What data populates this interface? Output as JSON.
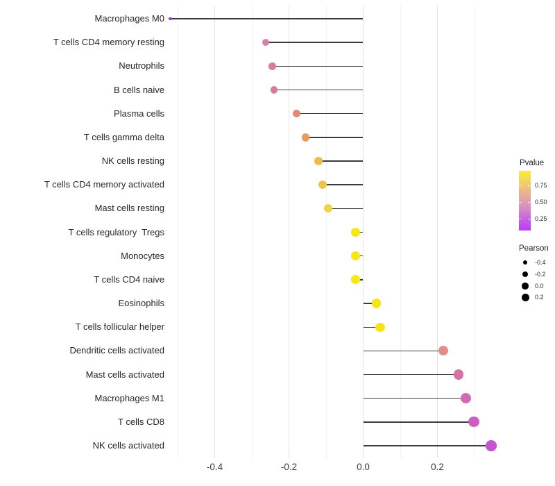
{
  "chart_data": {
    "type": "lollipop",
    "title": "",
    "xlabel": "",
    "ylabel": "",
    "xlim": [
      -0.565,
      0.388
    ],
    "grid": "vertical-only",
    "encoding": {
      "x": "Pearson correlation",
      "y": "immune cell type",
      "dot_size": "Pearson",
      "dot_color": "Pvalue"
    },
    "x_ticks": [
      {
        "label": "-0.4",
        "value": -0.4
      },
      {
        "label": "-0.2",
        "value": -0.2
      },
      {
        "label": "0.0",
        "value": 0.0
      },
      {
        "label": "0.2",
        "value": 0.2
      }
    ],
    "x_minor_values": [
      -0.5,
      -0.3,
      -0.1,
      0.1,
      0.3
    ],
    "points": [
      {
        "label": "Macrophages M0",
        "pearson": -0.52,
        "pvalue": 0.15,
        "color": "#9c33e4",
        "size": 4.5
      },
      {
        "label": "T cells CD4 memory resting",
        "pearson": -0.262,
        "pvalue": 0.4,
        "color": "#d97fab",
        "size": 10.3
      },
      {
        "label": "Neutrophils",
        "pearson": -0.245,
        "pvalue": 0.4,
        "color": "#d77ba4",
        "size": 10.4
      },
      {
        "label": "B cells naive",
        "pearson": -0.24,
        "pvalue": 0.4,
        "color": "#d77ba2",
        "size": 10.5
      },
      {
        "label": "Plasma cells",
        "pearson": -0.18,
        "pvalue": 0.52,
        "color": "#de8a77",
        "size": 11.2
      },
      {
        "label": "T cells gamma delta",
        "pearson": -0.155,
        "pvalue": 0.57,
        "color": "#e49d61",
        "size": 11.4
      },
      {
        "label": "NK cells resting",
        "pearson": -0.12,
        "pvalue": 0.65,
        "color": "#ecba50",
        "size": 11.8
      },
      {
        "label": "T cells CD4 memory activated",
        "pearson": -0.11,
        "pvalue": 0.67,
        "color": "#eec24b",
        "size": 11.9
      },
      {
        "label": "Mast cells resting",
        "pearson": -0.095,
        "pvalue": 0.71,
        "color": "#f0d245",
        "size": 12.1
      },
      {
        "label": "T cells regulatory  Tregs",
        "pearson": -0.02,
        "pvalue": 0.88,
        "color": "#f8e716",
        "size": 12.8
      },
      {
        "label": "Monocytes",
        "pearson": -0.02,
        "pvalue": 0.88,
        "color": "#f8e716",
        "size": 12.8
      },
      {
        "label": "T cells CD4 naive",
        "pearson": -0.02,
        "pvalue": 0.88,
        "color": "#f8e716",
        "size": 12.8
      },
      {
        "label": "Eosinophils",
        "pearson": 0.036,
        "pvalue": 0.9,
        "color": "#f7e412",
        "size": 13.2
      },
      {
        "label": "T cells follicular helper",
        "pearson": 0.046,
        "pvalue": 0.9,
        "color": "#f7e412",
        "size": 13.3
      },
      {
        "label": "Dendritic cells activated",
        "pearson": 0.216,
        "pvalue": 0.52,
        "color": "#e18d8b",
        "size": 14.0
      },
      {
        "label": "Mast cells activated",
        "pearson": 0.257,
        "pvalue": 0.42,
        "color": "#d573a6",
        "size": 14.6
      },
      {
        "label": "Macrophages M1",
        "pearson": 0.276,
        "pvalue": 0.38,
        "color": "#d169b4",
        "size": 15.0
      },
      {
        "label": "T cells CD8",
        "pearson": 0.298,
        "pvalue": 0.34,
        "color": "#cb5ec3",
        "size": 15.2
      },
      {
        "label": "NK cells activated",
        "pearson": 0.345,
        "pvalue": 0.28,
        "color": "#c455cf",
        "size": 15.6
      }
    ],
    "legend_pvalue": {
      "title": "Pvalue",
      "ticks": [
        "0.75",
        "0.50",
        "0.25"
      ],
      "gradient": [
        "#fcef24",
        "#f4d364",
        "#ecb788",
        "#e0a0a8",
        "#d384cd",
        "#c55ce9",
        "#bb3cf9"
      ]
    },
    "legend_pearson": {
      "title": "Pearson",
      "items": [
        {
          "label": "-0.4",
          "size": 6.5
        },
        {
          "label": "-0.2",
          "size": 8
        },
        {
          "label": "0.0",
          "size": 9.5
        },
        {
          "label": "0.2",
          "size": 11
        }
      ]
    },
    "colors": {
      "stem": "#3a3a3a",
      "grid_major": "#e4e4e4",
      "grid_minor": "#f2f2f2",
      "axis_text": "#3a3a3a",
      "label_text": "#262626"
    }
  }
}
